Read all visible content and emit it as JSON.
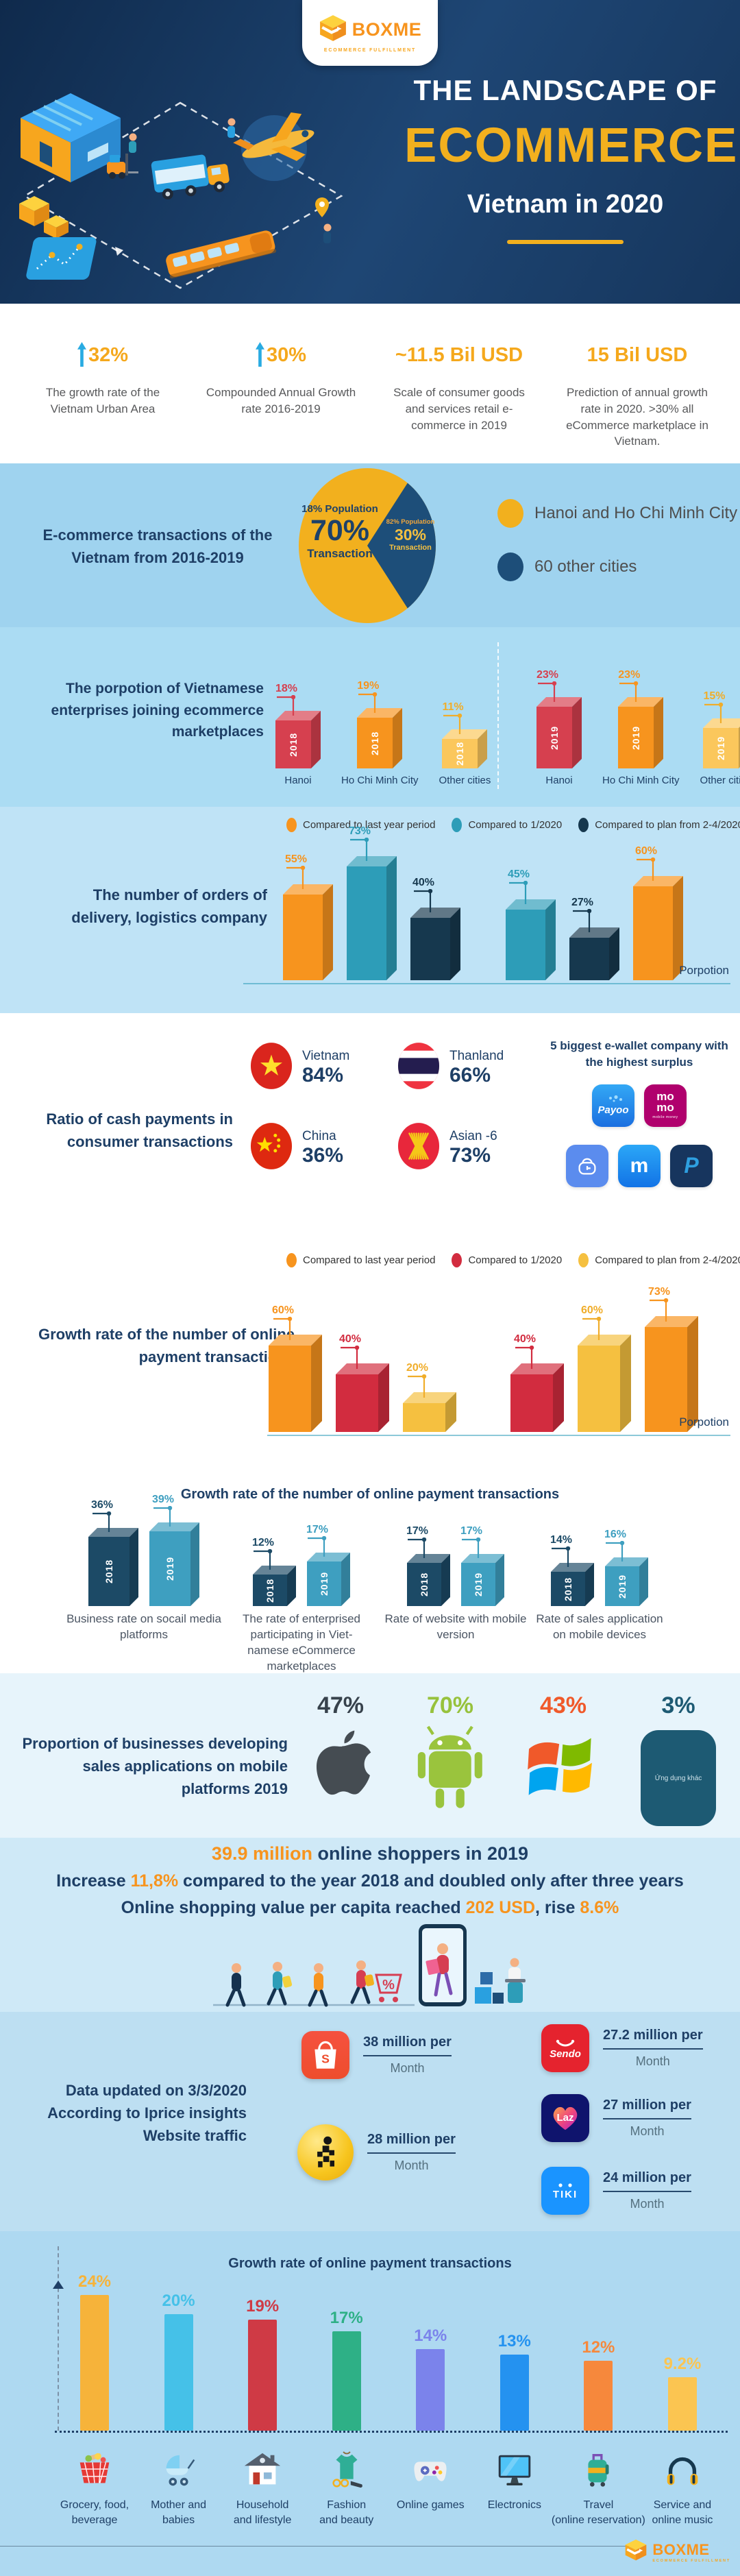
{
  "brand": {
    "name": "BOXME",
    "tagline": "ECOMMERCE FULFILLMENT"
  },
  "header": {
    "title_top": "THE LANDSCAPE OF",
    "title_main": "ECOMMERCE",
    "title_sub": "Vietnam in 2020"
  },
  "stats": [
    {
      "value": "32%",
      "desc": "The growth rate of the Vietnam Urban Area",
      "up_arrow": true
    },
    {
      "value": "30%",
      "desc": "Compounded Annual Growth rate 2016-2019",
      "up_arrow": true
    },
    {
      "value": "~11.5 Bil USD",
      "desc": "Scale of consumer goods and services retail e-commerce in 2019",
      "up_arrow": false
    },
    {
      "value": "15 Bil USD",
      "desc": "Prediction of annual growth rate in 2020. >30% all eCommerce marketplace in Vietnam.",
      "up_arrow": false
    }
  ],
  "sections": {
    "pie": {
      "title": "E-commerce transactions of the Vietnam from 2016-2019",
      "yellow": {
        "pop": "18% Population",
        "pct": "70%",
        "word": "Transaction"
      },
      "navy": {
        "pop": "82% Population",
        "pct": "30%",
        "word": "Transaction"
      },
      "legend": [
        {
          "label": "Hanoi and Ho Chi Minh City",
          "color": "#f2b01e"
        },
        {
          "label": "60 other cities",
          "color": "#1d4e79"
        }
      ]
    },
    "enterprise": {
      "title": "The porpotion of Vietnamese enterprises joining ecommerce marketplaces"
    },
    "orders": {
      "title": "The number of orders of delivery, logistics company",
      "axis_label": "Porpotion"
    },
    "cash": {
      "title": "Ratio of cash payments in consumer transactions",
      "ewallet_title": "5 biggest e-wallet company with the highest surplus",
      "ewallets": {
        "payoo": "Payoo",
        "momo1": "mo",
        "momo2": "mo",
        "momo_sub": "mobile money",
        "moca": "m",
        "p": "P"
      }
    },
    "payment": {
      "title": "Growth rate of the number of online payment transactions",
      "axis_label": "Porpotion"
    },
    "metrics": {
      "title": "Growth rate of the number of online payment transactions"
    },
    "platforms": {
      "title": "Proportion of businesses developing sales applications on mobile platforms 2019",
      "other_label": "Ứng dụng khác"
    },
    "shoppers": {
      "l1_hl": "39.9 million",
      "l1": " online shoppers in 2019",
      "l2a": "Increase ",
      "l2_hl": "11,8%",
      "l2b": " compared to the year 2018 and doubled only after three years",
      "l3a": "Online shopping value per capita reached ",
      "l3_hl1": "202 USD",
      "l3b": ", rise ",
      "l3_hl2": "8.6%"
    },
    "traffic": {
      "title_lines": [
        "Data updated on 3/3/2020",
        "According to Iprice insights",
        "Website traffic"
      ],
      "left": [
        {
          "logo": "shopee",
          "amount": "38 million per",
          "period": "Month"
        },
        {
          "logo": "pixel",
          "amount": "28 million per",
          "period": "Month"
        }
      ],
      "right": [
        {
          "logo": "sendo",
          "text": "Sendo",
          "amount": "27.2 million per",
          "period": "Month"
        },
        {
          "logo": "lazada",
          "text": "Laz",
          "amount": "27 million per",
          "period": "Month"
        },
        {
          "logo": "tiki",
          "text": "TIKI",
          "amount": "24 million per",
          "period": "Month"
        }
      ]
    },
    "category": {
      "title": "Growth rate of online payment transactions"
    }
  },
  "chart_data": [
    {
      "id": "ecommerce-transactions-share",
      "type": "pie",
      "title": "E-commerce transactions of the Vietnam from 2016-2019",
      "slices": [
        {
          "label": "Hanoi and Ho Chi Minh City",
          "transaction_pct": 70,
          "population_pct": 18,
          "color": "#f2b01e"
        },
        {
          "label": "60 other cities",
          "transaction_pct": 30,
          "population_pct": 82,
          "color": "#1d4e79"
        }
      ],
      "legend_position": "right"
    },
    {
      "id": "enterprises-joining-marketplaces",
      "type": "bar",
      "title": "The porpotion of Vietnamese enterprises joining ecommerce marketplaces",
      "categories": [
        "Hanoi",
        "Ho Chi Minh City",
        "Other cities"
      ],
      "series": [
        {
          "name": "2018",
          "values": [
            18,
            19,
            11
          ]
        },
        {
          "name": "2019",
          "values": [
            23,
            23,
            15
          ]
        }
      ],
      "bar_colors": [
        "#d6404f",
        "#f7941e",
        "#fbc75c"
      ],
      "label_colors": [
        "#d6404f",
        "#f7941e",
        "#f0ad2a"
      ],
      "unit": "%"
    },
    {
      "id": "delivery-logistics-orders",
      "type": "bar",
      "title": "The number of orders of delivery, logistics company",
      "legend": [
        "Compared to last year period",
        "Compared to 1/2020",
        "Compared to plan from 2-4/2020"
      ],
      "legend_colors": [
        "#f7941e",
        "#2d9db8",
        "#16384e"
      ],
      "groups": [
        [
          {
            "value": 55,
            "series": 0
          },
          {
            "value": 73,
            "series": 1
          },
          {
            "value": 40,
            "series": 2
          }
        ],
        [
          {
            "value": 45,
            "series": 1
          },
          {
            "value": 27,
            "series": 2
          },
          {
            "value": 60,
            "series": 0
          }
        ]
      ],
      "xlabel": "Porpotion",
      "unit": "%"
    },
    {
      "id": "online-payment-growth",
      "type": "bar",
      "title": "Growth rate of the number of online payment transactions",
      "legend": [
        "Compared to last year period",
        "Compared to 1/2020",
        "Compared to plan from 2-4/2020"
      ],
      "legend_colors": [
        "#f7941e",
        "#d22c3f",
        "#f5c040"
      ],
      "label_colors": [
        "#f7941e",
        "#d22c3f",
        "#f0ad2a"
      ],
      "groups": [
        [
          {
            "value": 60,
            "series": 0
          },
          {
            "value": 40,
            "series": 1
          },
          {
            "value": 20,
            "series": 2
          }
        ],
        [
          {
            "value": 40,
            "series": 1
          },
          {
            "value": 60,
            "series": 2
          },
          {
            "value": 73,
            "series": 0
          }
        ]
      ],
      "xlabel": "Porpotion",
      "unit": "%"
    },
    {
      "id": "digital-adoption-rates",
      "type": "bar",
      "title": "Growth rate of the number of online payment transactions",
      "series": [
        {
          "name": "2018",
          "color": "#1c4a66"
        },
        {
          "name": "2019",
          "color": "#3e9fc0"
        }
      ],
      "groups": [
        {
          "category": "Business rate on socail media platforms",
          "values": [
            36,
            39
          ]
        },
        {
          "category": "The rate of enterprised participating in Viet-namese eCommerce marketplaces",
          "values": [
            12,
            17
          ]
        },
        {
          "category": "Rate of website with mobile version",
          "values": [
            17,
            17
          ]
        },
        {
          "category": "Rate of sales application on mobile devices",
          "values": [
            14,
            16
          ]
        }
      ],
      "unit": "%"
    },
    {
      "id": "mobile-platform-development",
      "type": "bar",
      "title": "Proportion of businesses developing sales applications on mobile platforms 2019",
      "categories": [
        "apple",
        "android",
        "windows",
        "other"
      ],
      "values": [
        47,
        70,
        43,
        3
      ],
      "value_labels": [
        "47%",
        "70%",
        "43%",
        "3%"
      ],
      "value_colors": [
        "#37424c",
        "#97c23c",
        "#f0592a",
        "#1d5a73"
      ],
      "unit": "%"
    },
    {
      "id": "website-traffic",
      "type": "table",
      "title": "Website traffic (updated 3/3/2020, Iprice insights)",
      "rows": [
        {
          "site": "S shopping-bag logo",
          "visits": "38 million per Month"
        },
        {
          "site": "yellow pixel-figure logo",
          "visits": "28 million per Month"
        },
        {
          "site": "Sendo",
          "visits": "27.2 million per Month"
        },
        {
          "site": "Laz",
          "visits": "27 million per Month"
        },
        {
          "site": "TIKI",
          "visits": "24 million per Month"
        }
      ]
    },
    {
      "id": "category-payment-growth",
      "type": "bar",
      "title": "Growth rate of online payment transactions",
      "categories": [
        [
          "Grocery, food,",
          "beverage"
        ],
        [
          "Mother and",
          "babies"
        ],
        [
          "Household",
          "and lifestyle"
        ],
        [
          "Fashion",
          "and beauty"
        ],
        [
          "Online games"
        ],
        [
          "Electronics"
        ],
        [
          "Travel",
          "(online reservation)"
        ],
        [
          "Service and",
          "online music"
        ]
      ],
      "values": [
        24,
        20,
        19,
        17,
        14,
        13,
        12,
        9.2
      ],
      "value_labels": [
        "24%",
        "20%",
        "19%",
        "17%",
        "14%",
        "13%",
        "12%",
        "9.2%"
      ],
      "colors": [
        "#f6b33a",
        "#45c1e8",
        "#cf3a45",
        "#2eb086",
        "#7b83eb",
        "#2492f0",
        "#f6883c",
        "#fbc551"
      ]
    }
  ]
}
